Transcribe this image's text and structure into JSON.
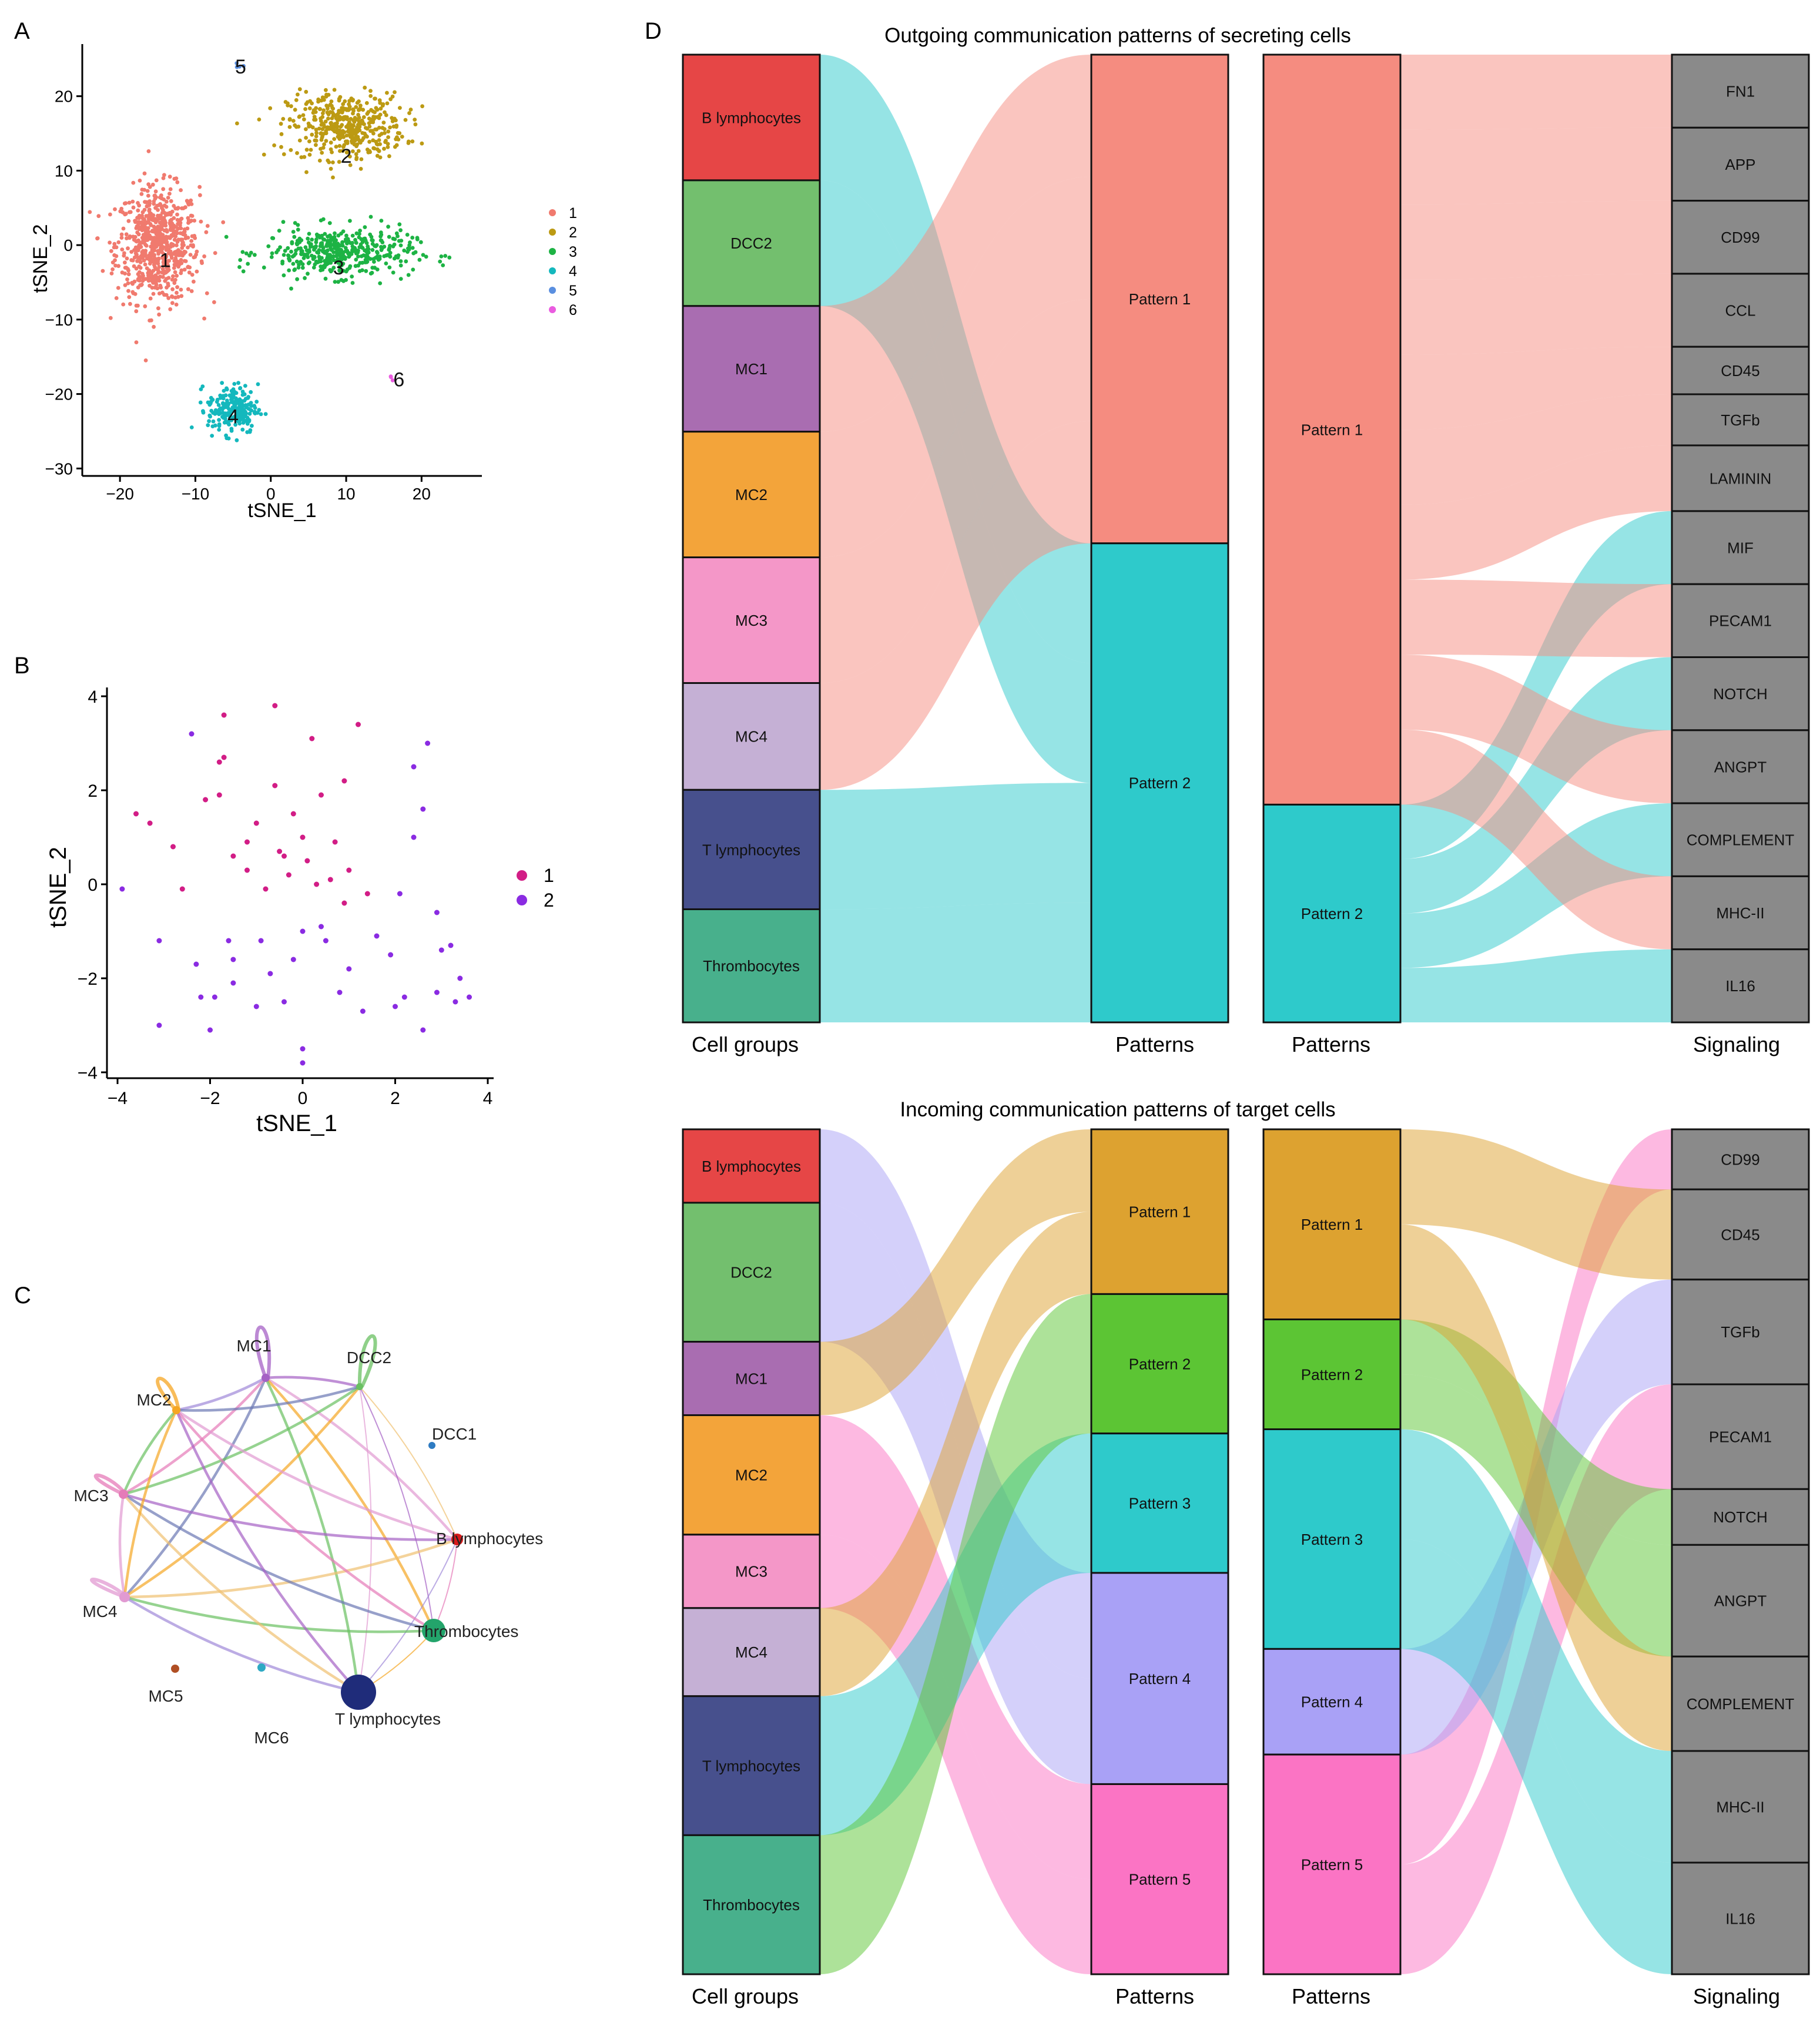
{
  "panel_letters": {
    "a": "A",
    "b": "B",
    "c": "C",
    "d": "D"
  },
  "colors": {
    "c1": "#F07A6E",
    "c2": "#BC9A13",
    "c3": "#1DB344",
    "c4": "#14B8BD",
    "c5": "#5A8FE0",
    "c6": "#EA5CE0",
    "b1": "#D21D86",
    "b2": "#8A2BE2",
    "teal": "#2ECACB",
    "salmon": "#F58C80",
    "gold": "#DDA230",
    "green": "#5CC534",
    "lav": "#A9A1F6",
    "pink": "#FB74C4",
    "box": "#8A8A8A"
  },
  "chart_data": [
    {
      "type": "scatter",
      "panel": "A",
      "xlabel": "tSNE_1",
      "ylabel": "tSNE_2",
      "xlim": [
        -25,
        28
      ],
      "ylim": [
        -31,
        27
      ],
      "x_ticks": [
        -20,
        -10,
        0,
        10,
        20
      ],
      "y_ticks": [
        -30,
        -20,
        -10,
        0,
        10,
        20
      ],
      "tick_labels_x": [
        "−20",
        "−10",
        "0",
        "10",
        "20"
      ],
      "tick_labels_y": [
        "−30",
        "−20",
        "−10",
        "0",
        "10",
        "20"
      ],
      "series": [
        {
          "name": "1",
          "center": [
            -15,
            0
          ],
          "spread": [
            5,
            7
          ],
          "n": 700,
          "label_at": [
            -14,
            -2
          ]
        },
        {
          "name": "2",
          "center": [
            10,
            16
          ],
          "spread": [
            7,
            4
          ],
          "n": 420,
          "label_at": [
            10,
            12
          ]
        },
        {
          "name": "3",
          "center": [
            9,
            -1
          ],
          "spread": [
            9,
            3
          ],
          "n": 420,
          "label_at": [
            9,
            -3
          ]
        },
        {
          "name": "4",
          "center": [
            -5,
            -22
          ],
          "spread": [
            3,
            3
          ],
          "n": 220,
          "label_at": [
            -5,
            -23
          ]
        },
        {
          "name": "5",
          "center": [
            -4,
            24
          ],
          "spread": [
            0.5,
            0.4
          ],
          "n": 4,
          "label_at": [
            -4,
            24
          ]
        },
        {
          "name": "6",
          "center": [
            16,
            -18
          ],
          "spread": [
            0.5,
            0.5
          ],
          "n": 3,
          "label_at": [
            17,
            -18
          ]
        }
      ],
      "legend": [
        "1",
        "2",
        "3",
        "4",
        "5",
        "6"
      ],
      "legend_position": "right"
    },
    {
      "type": "scatter",
      "panel": "B",
      "xlabel": "tSNE_1",
      "ylabel": "tSNE_2",
      "xlim": [
        -4.2,
        4.2
      ],
      "ylim": [
        -4.2,
        4.2
      ],
      "x_ticks": [
        -4,
        -2,
        0,
        2,
        4
      ],
      "y_ticks": [
        -4,
        -2,
        0,
        2,
        4
      ],
      "tick_labels_x": [
        "−4",
        "−2",
        "0",
        "2",
        "4"
      ],
      "tick_labels_y": [
        "−4",
        "−2",
        "0",
        "2",
        "4"
      ],
      "series": [
        {
          "name": "1",
          "points": [
            [
              -1.7,
              3.6
            ],
            [
              -1.7,
              2.7
            ],
            [
              -1.8,
              2.6
            ],
            [
              -0.6,
              3.8
            ],
            [
              0.2,
              3.1
            ],
            [
              1.2,
              3.4
            ],
            [
              0.9,
              2.2
            ],
            [
              -0.6,
              2.1
            ],
            [
              -1.0,
              1.3
            ],
            [
              -0.2,
              1.5
            ],
            [
              0.4,
              1.9
            ],
            [
              -3.6,
              1.5
            ],
            [
              -3.3,
              1.3
            ],
            [
              -2.1,
              1.8
            ],
            [
              -1.2,
              0.9
            ],
            [
              -0.5,
              0.7
            ],
            [
              0.1,
              0.5
            ],
            [
              0.7,
              0.9
            ],
            [
              1.0,
              0.3
            ],
            [
              -1.5,
              0.6
            ],
            [
              -2.8,
              0.8
            ],
            [
              -0.8,
              -0.1
            ],
            [
              0.3,
              0.0
            ],
            [
              -0.3,
              0.2
            ],
            [
              0.6,
              0.1
            ],
            [
              -1.2,
              0.3
            ],
            [
              1.4,
              -0.2
            ],
            [
              -2.6,
              -0.1
            ],
            [
              0.9,
              -0.4
            ],
            [
              -0.4,
              0.6
            ],
            [
              -1.8,
              1.9
            ],
            [
              0.0,
              1.0
            ]
          ]
        },
        {
          "name": "2",
          "points": [
            [
              -2.4,
              3.2
            ],
            [
              -3.9,
              -0.1
            ],
            [
              -3.1,
              -1.2
            ],
            [
              -2.3,
              -1.7
            ],
            [
              -1.6,
              -1.2
            ],
            [
              -1.5,
              -2.1
            ],
            [
              -0.9,
              -1.2
            ],
            [
              -0.7,
              -1.9
            ],
            [
              -0.4,
              -2.5
            ],
            [
              0.0,
              -1.0
            ],
            [
              0.4,
              -0.9
            ],
            [
              0.5,
              -1.2
            ],
            [
              1.0,
              -1.8
            ],
            [
              1.3,
              -2.7
            ],
            [
              1.9,
              -1.5
            ],
            [
              2.0,
              -2.6
            ],
            [
              2.2,
              -2.4
            ],
            [
              2.6,
              -3.1
            ],
            [
              2.9,
              -2.3
            ],
            [
              3.3,
              -2.5
            ],
            [
              3.4,
              -2.0
            ],
            [
              3.6,
              -2.4
            ],
            [
              3.2,
              -1.3
            ],
            [
              2.9,
              -0.6
            ],
            [
              2.1,
              -0.2
            ],
            [
              2.4,
              1.0
            ],
            [
              2.6,
              1.6
            ],
            [
              2.4,
              2.5
            ],
            [
              2.7,
              3.0
            ],
            [
              0.0,
              -3.5
            ],
            [
              0.0,
              -3.8
            ],
            [
              -2.2,
              -2.4
            ],
            [
              -1.9,
              -2.4
            ],
            [
              -2.0,
              -3.1
            ],
            [
              -3.1,
              -3.0
            ],
            [
              -1.0,
              -2.6
            ],
            [
              -1.5,
              -1.6
            ],
            [
              0.8,
              -2.3
            ],
            [
              1.6,
              -1.1
            ],
            [
              -0.2,
              -1.6
            ],
            [
              3.0,
              -1.4
            ]
          ]
        }
      ],
      "legend": [
        "1",
        "2"
      ],
      "legend_position": "right"
    },
    {
      "type": "network",
      "panel": "C",
      "nodes": [
        "MC1",
        "DCC2",
        "DCC1",
        "B lymphocytes",
        "Thrombocytes",
        "T lymphocytes",
        "MC6",
        "MC5",
        "MC4",
        "MC3",
        "MC2"
      ]
    },
    {
      "type": "alluvial",
      "panel": "D-outgoing",
      "title": "Outgoing communication patterns of secreting cells",
      "axis_labels": [
        "Cell groups",
        "Patterns",
        "Patterns",
        "Signaling"
      ],
      "cell_groups": [
        "B lymphocytes",
        "DCC2",
        "MC1",
        "MC2",
        "MC3",
        "MC4",
        "T lymphocytes",
        "Thrombocytes"
      ],
      "cell_group_sizes": [
        1,
        1,
        1,
        1,
        1,
        0.85,
        0.95,
        0.9
      ],
      "patterns": [
        "Pattern 1",
        "Pattern 2"
      ],
      "pattern_sizes": [
        0.505,
        0.495
      ],
      "patterns_right_sizes": [
        0.775,
        0.225
      ],
      "signaling": [
        "FN1",
        "APP",
        "CD99",
        "CCL",
        "CD45",
        "TGFb",
        "LAMININ",
        "MIF",
        "PECAM1",
        "NOTCH",
        "ANGPT",
        "COMPLEMENT",
        "MHC-II",
        "IL16"
      ],
      "signaling_sizes": [
        1,
        1,
        1,
        1,
        0.65,
        0.7,
        0.9,
        1,
        1,
        1,
        1,
        1,
        1,
        1
      ],
      "cell_to_pattern": [
        2,
        2,
        1,
        1,
        1,
        1,
        2,
        2
      ],
      "signaling_to_pattern": [
        1,
        1,
        1,
        1,
        1,
        1,
        1,
        2,
        1,
        2,
        1,
        2,
        1,
        2
      ]
    },
    {
      "type": "alluvial",
      "panel": "D-incoming",
      "title": "Incoming communication patterns of target cells",
      "axis_labels": [
        "Cell groups",
        "Patterns",
        "Patterns",
        "Signaling"
      ],
      "cell_groups": [
        "B lymphocytes",
        "DCC2",
        "MC1",
        "MC2",
        "MC3",
        "MC4",
        "T lymphocytes",
        "Thrombocytes"
      ],
      "cell_group_sizes": [
        0.75,
        1.42,
        0.75,
        1.22,
        0.75,
        0.9,
        1.42,
        1.42
      ],
      "patterns": [
        "Pattern 1",
        "Pattern 2",
        "Pattern 3",
        "Pattern 4",
        "Pattern 5"
      ],
      "pattern_sizes": [
        0.195,
        0.165,
        0.165,
        0.25,
        0.225
      ],
      "patterns_right_sizes": [
        0.225,
        0.13,
        0.26,
        0.125,
        0.26
      ],
      "signaling": [
        "CD99",
        "CD45",
        "TGFb",
        "PECAM1",
        "NOTCH",
        "ANGPT",
        "COMPLEMENT",
        "MHC-II",
        "IL16"
      ],
      "signaling_sizes": [
        0.7,
        1.05,
        1.22,
        1.22,
        0.65,
        1.3,
        1.1,
        1.3,
        1.3
      ],
      "cell_to_pattern": [
        4,
        4,
        1,
        5,
        5,
        1,
        3,
        2
      ],
      "signaling_to_pattern": [
        5,
        1,
        4,
        5,
        2,
        2,
        1,
        3,
        3
      ]
    }
  ]
}
